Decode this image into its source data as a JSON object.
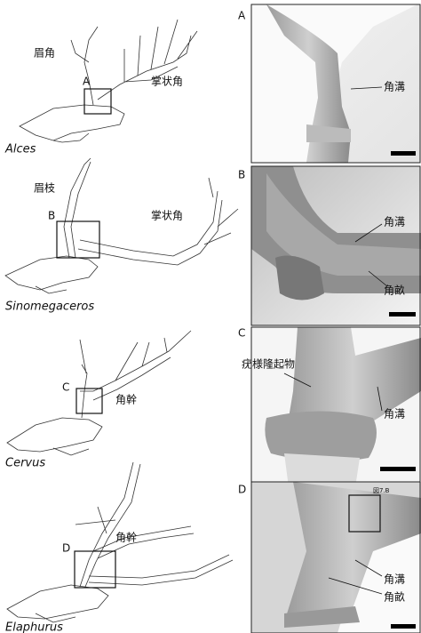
{
  "figure": {
    "panels": [
      {
        "genus": "Alces",
        "letter": "A",
        "drawing_labels": [
          "眉角",
          "掌状角"
        ],
        "photo_labels": [
          "角溝"
        ]
      },
      {
        "genus": "Sinomegaceros",
        "letter": "B",
        "drawing_labels": [
          "眉枝",
          "掌状角"
        ],
        "photo_labels": [
          "角溝",
          "角畝"
        ]
      },
      {
        "genus": "Cervus",
        "letter": "C",
        "drawing_labels": [
          "角幹"
        ],
        "photo_labels": [
          "疣様隆起物",
          "角溝"
        ]
      },
      {
        "genus": "Elaphurus",
        "letter": "D",
        "drawing_labels": [
          "角幹"
        ],
        "photo_labels": [
          "角溝",
          "角畝"
        ],
        "photo_note": "図7.B"
      }
    ]
  }
}
